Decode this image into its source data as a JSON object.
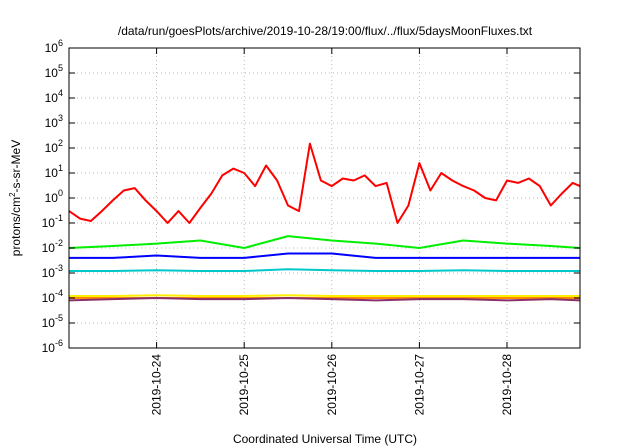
{
  "chart_data": {
    "type": "line",
    "title": "/data/run/goesPlots/archive/2019-10-28/19:00/flux/../flux/5daysMoonFluxes.txt",
    "xlabel": "Coordinated Universal Time (UTC)",
    "ylabel_base": "protons/cm",
    "ylabel_sup": "2",
    "ylabel_rest": "-s-sr-MeV",
    "yscale": "log",
    "ylim": [
      1e-06,
      1000000.0
    ],
    "y_ticks": [
      {
        "exp": "-6"
      },
      {
        "exp": "-5"
      },
      {
        "exp": "-4"
      },
      {
        "exp": "-3"
      },
      {
        "exp": "-2"
      },
      {
        "exp": "-1"
      },
      {
        "exp": "0"
      },
      {
        "exp": "1"
      },
      {
        "exp": "2"
      },
      {
        "exp": "3"
      },
      {
        "exp": "4"
      },
      {
        "exp": "5"
      },
      {
        "exp": "6"
      }
    ],
    "x_range_days": [
      "2019-10-23 00:00",
      "2019-10-28 20:00"
    ],
    "x_ticks": [
      "2019-10-24",
      "2019-10-25",
      "2019-10-26",
      "2019-10-27",
      "2019-10-28"
    ],
    "grid": true,
    "legend": "none",
    "series": [
      {
        "color": "#ff0000",
        "x": [
          "2019-10-23 00:00",
          "2019-10-23 03:00",
          "2019-10-23 06:00",
          "2019-10-23 09:00",
          "2019-10-23 12:00",
          "2019-10-23 15:00",
          "2019-10-23 18:00",
          "2019-10-23 21:00",
          "2019-10-24 00:00",
          "2019-10-24 03:00",
          "2019-10-24 06:00",
          "2019-10-24 09:00",
          "2019-10-24 12:00",
          "2019-10-24 15:00",
          "2019-10-24 18:00",
          "2019-10-24 21:00",
          "2019-10-25 00:00",
          "2019-10-25 03:00",
          "2019-10-25 06:00",
          "2019-10-25 09:00",
          "2019-10-25 12:00",
          "2019-10-25 15:00",
          "2019-10-25 18:00",
          "2019-10-25 21:00",
          "2019-10-26 00:00",
          "2019-10-26 03:00",
          "2019-10-26 06:00",
          "2019-10-26 09:00",
          "2019-10-26 12:00",
          "2019-10-26 15:00",
          "2019-10-26 18:00",
          "2019-10-26 21:00",
          "2019-10-27 00:00",
          "2019-10-27 03:00",
          "2019-10-27 06:00",
          "2019-10-27 09:00",
          "2019-10-27 12:00",
          "2019-10-27 15:00",
          "2019-10-27 18:00",
          "2019-10-27 21:00",
          "2019-10-28 00:00",
          "2019-10-28 03:00",
          "2019-10-28 06:00",
          "2019-10-28 09:00",
          "2019-10-28 12:00",
          "2019-10-28 15:00",
          "2019-10-28 18:00",
          "2019-10-28 20:00"
        ],
        "y": [
          0.3,
          0.15,
          0.12,
          0.3,
          0.8,
          2.0,
          2.5,
          0.8,
          0.3,
          0.1,
          0.3,
          0.1,
          0.4,
          1.5,
          8,
          15,
          10,
          3,
          20,
          5,
          0.5,
          0.3,
          150,
          5,
          3,
          6,
          5,
          8,
          3,
          4,
          0.1,
          0.5,
          25,
          2,
          10,
          5,
          3,
          2,
          1,
          0.8,
          5,
          4,
          6,
          3,
          0.5,
          1.5,
          4,
          3
        ]
      },
      {
        "color": "#00ee00",
        "x": [
          "2019-10-23 00:00",
          "2019-10-23 12:00",
          "2019-10-24 00:00",
          "2019-10-24 12:00",
          "2019-10-25 00:00",
          "2019-10-25 12:00",
          "2019-10-26 00:00",
          "2019-10-26 12:00",
          "2019-10-27 00:00",
          "2019-10-27 12:00",
          "2019-10-28 00:00",
          "2019-10-28 12:00",
          "2019-10-28 20:00"
        ],
        "y": [
          0.01,
          0.012,
          0.015,
          0.02,
          0.01,
          0.03,
          0.02,
          0.015,
          0.01,
          0.02,
          0.015,
          0.012,
          0.01
        ]
      },
      {
        "color": "#0000ff",
        "x": [
          "2019-10-23 00:00",
          "2019-10-23 12:00",
          "2019-10-24 00:00",
          "2019-10-24 12:00",
          "2019-10-25 00:00",
          "2019-10-25 12:00",
          "2019-10-26 00:00",
          "2019-10-26 12:00",
          "2019-10-27 00:00",
          "2019-10-27 12:00",
          "2019-10-28 00:00",
          "2019-10-28 12:00",
          "2019-10-28 20:00"
        ],
        "y": [
          0.004,
          0.004,
          0.005,
          0.004,
          0.004,
          0.006,
          0.006,
          0.004,
          0.004,
          0.004,
          0.004,
          0.004,
          0.004
        ]
      },
      {
        "color": "#00c8c8",
        "x": [
          "2019-10-23 00:00",
          "2019-10-23 12:00",
          "2019-10-24 00:00",
          "2019-10-24 12:00",
          "2019-10-25 00:00",
          "2019-10-25 12:00",
          "2019-10-26 00:00",
          "2019-10-26 12:00",
          "2019-10-27 00:00",
          "2019-10-27 12:00",
          "2019-10-28 00:00",
          "2019-10-28 12:00",
          "2019-10-28 20:00"
        ],
        "y": [
          0.0012,
          0.0012,
          0.0013,
          0.0012,
          0.0012,
          0.0014,
          0.0013,
          0.0012,
          0.0012,
          0.0013,
          0.0012,
          0.0012,
          0.0012
        ]
      },
      {
        "color": "#ffee00",
        "x": [
          "2019-10-23 00:00",
          "2019-10-23 12:00",
          "2019-10-24 00:00",
          "2019-10-24 12:00",
          "2019-10-25 00:00",
          "2019-10-25 12:00",
          "2019-10-26 00:00",
          "2019-10-26 12:00",
          "2019-10-27 00:00",
          "2019-10-27 12:00",
          "2019-10-28 00:00",
          "2019-10-28 12:00",
          "2019-10-28 20:00"
        ],
        "y": [
          0.00012,
          0.00012,
          0.00013,
          0.00012,
          0.00012,
          0.00013,
          0.00012,
          0.00012,
          0.00012,
          0.00012,
          0.00012,
          0.00012,
          0.00012
        ]
      },
      {
        "color": "#ff8c00",
        "x": [
          "2019-10-23 00:00",
          "2019-10-23 12:00",
          "2019-10-24 00:00",
          "2019-10-24 12:00",
          "2019-10-25 00:00",
          "2019-10-25 12:00",
          "2019-10-26 00:00",
          "2019-10-26 12:00",
          "2019-10-27 00:00",
          "2019-10-27 12:00",
          "2019-10-28 00:00",
          "2019-10-28 12:00",
          "2019-10-28 20:00"
        ],
        "y": [
          0.0001,
          0.0001,
          0.0001,
          0.0001,
          0.0001,
          0.0001,
          0.0001,
          0.0001,
          0.0001,
          0.0001,
          0.0001,
          0.0001,
          0.0001
        ]
      },
      {
        "color": "#8b2f6a",
        "x": [
          "2019-10-23 00:00",
          "2019-10-23 12:00",
          "2019-10-24 00:00",
          "2019-10-24 12:00",
          "2019-10-25 00:00",
          "2019-10-25 12:00",
          "2019-10-26 00:00",
          "2019-10-26 12:00",
          "2019-10-27 00:00",
          "2019-10-27 12:00",
          "2019-10-28 00:00",
          "2019-10-28 12:00",
          "2019-10-28 20:00"
        ],
        "y": [
          8e-05,
          9e-05,
          0.0001,
          9e-05,
          9e-05,
          0.0001,
          9e-05,
          8e-05,
          9e-05,
          9e-05,
          8e-05,
          9e-05,
          8e-05
        ]
      }
    ]
  }
}
